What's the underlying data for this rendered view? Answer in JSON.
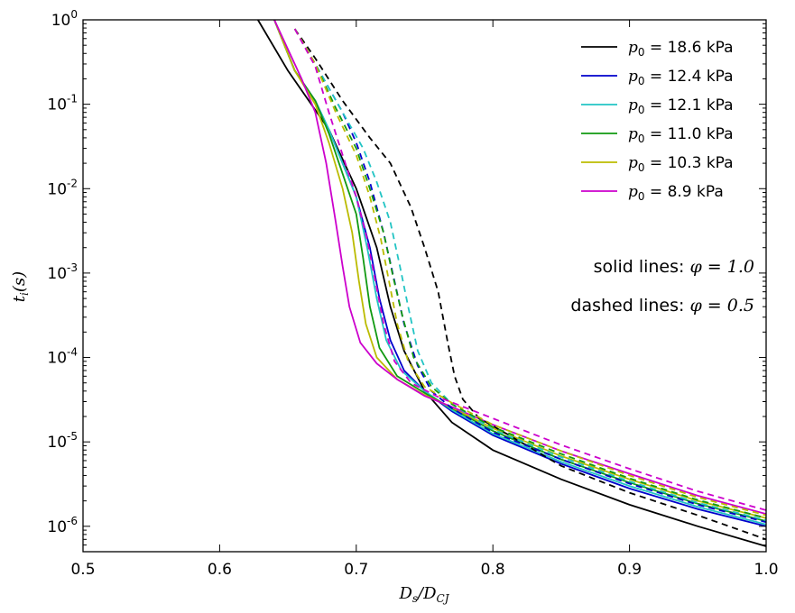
{
  "chart_data": {
    "type": "line",
    "title": "",
    "xlabel": "D_s/D_CJ",
    "ylabel": "t_i(s)",
    "yscale": "log",
    "xlim": [
      0.5,
      1.0
    ],
    "ylim": [
      5e-07,
      1.0
    ],
    "x_ticks": [
      "0.5",
      "0.6",
      "0.7",
      "0.8",
      "0.9",
      "1.0"
    ],
    "y_ticks": [
      {
        "base": "10",
        "exp": "0",
        "label": "10^0"
      },
      {
        "base": "10",
        "exp": "-1",
        "label": "10^-1"
      },
      {
        "base": "10",
        "exp": "-2",
        "label": "10^-2"
      },
      {
        "base": "10",
        "exp": "-3",
        "label": "10^-3"
      },
      {
        "base": "10",
        "exp": "-4",
        "label": "10^-4"
      },
      {
        "base": "10",
        "exp": "-5",
        "label": "10^-5"
      },
      {
        "base": "10",
        "exp": "-6",
        "label": "10^-6"
      }
    ],
    "legend": {
      "placement": "top-right",
      "entries": [
        {
          "var": "p",
          "sub": "0",
          "text": " = 18.6 kPa",
          "color": "#000000"
        },
        {
          "var": "p",
          "sub": "0",
          "text": " = 12.4 kPa",
          "color": "#0000cc"
        },
        {
          "var": "p",
          "sub": "0",
          "text": " = 12.1 kPa",
          "color": "#22c4c4"
        },
        {
          "var": "p",
          "sub": "0",
          "text": " = 11.0 kPa",
          "color": "#119911"
        },
        {
          "var": "p",
          "sub": "0",
          "text": " = 10.3 kPa",
          "color": "#bbbb00"
        },
        {
          "var": "p",
          "sub": "0",
          "text": " = 8.9 kPa",
          "color": "#cc00cc"
        }
      ]
    },
    "annotations": [
      {
        "text": "solid lines: ",
        "math": "φ = 1.0"
      },
      {
        "text": "dashed lines: ",
        "math": "φ = 0.5"
      }
    ],
    "series": [
      {
        "name": "p0 = 18.6 kPa, phi = 1.0",
        "color": "#000000",
        "style": "solid",
        "points": [
          [
            0.628,
            1.0
          ],
          [
            0.65,
            0.25
          ],
          [
            0.68,
            0.05
          ],
          [
            0.7,
            0.01
          ],
          [
            0.715,
            0.002
          ],
          [
            0.725,
            0.0004
          ],
          [
            0.735,
            0.00012
          ],
          [
            0.75,
            4e-05
          ],
          [
            0.77,
            1.7e-05
          ],
          [
            0.8,
            8e-06
          ],
          [
            0.85,
            3.6e-06
          ],
          [
            0.9,
            1.8e-06
          ],
          [
            0.95,
            1e-06
          ],
          [
            1.0,
            5.8e-07
          ]
        ]
      },
      {
        "name": "p0 = 12.4 kPa, phi = 1.0",
        "color": "#0000cc",
        "style": "solid",
        "points": [
          [
            0.64,
            1.0
          ],
          [
            0.655,
            0.25
          ],
          [
            0.67,
            0.11
          ],
          [
            0.68,
            0.05
          ],
          [
            0.69,
            0.02
          ],
          [
            0.7,
            0.008
          ],
          [
            0.71,
            0.002
          ],
          [
            0.717,
            0.0005
          ],
          [
            0.725,
            0.00016
          ],
          [
            0.735,
            7e-05
          ],
          [
            0.75,
            4e-05
          ],
          [
            0.77,
            2.3e-05
          ],
          [
            0.8,
            1.2e-05
          ],
          [
            0.85,
            5.5e-06
          ],
          [
            0.9,
            2.8e-06
          ],
          [
            0.95,
            1.6e-06
          ],
          [
            1.0,
            1e-06
          ]
        ]
      },
      {
        "name": "p0 = 12.1 kPa, phi = 1.0",
        "color": "#22c4c4",
        "style": "solid",
        "points": [
          [
            0.64,
            1.0
          ],
          [
            0.655,
            0.25
          ],
          [
            0.67,
            0.11
          ],
          [
            0.68,
            0.05
          ],
          [
            0.69,
            0.02
          ],
          [
            0.7,
            0.008
          ],
          [
            0.708,
            0.002
          ],
          [
            0.715,
            0.0005
          ],
          [
            0.722,
            0.00016
          ],
          [
            0.733,
            7e-05
          ],
          [
            0.75,
            4e-05
          ],
          [
            0.77,
            2.4e-05
          ],
          [
            0.8,
            1.25e-05
          ],
          [
            0.85,
            5.8e-06
          ],
          [
            0.9,
            3e-06
          ],
          [
            0.95,
            1.7e-06
          ],
          [
            1.0,
            1.05e-06
          ]
        ]
      },
      {
        "name": "p0 = 11.0 kPa, phi = 1.0",
        "color": "#119911",
        "style": "solid",
        "points": [
          [
            0.64,
            1.0
          ],
          [
            0.655,
            0.25
          ],
          [
            0.67,
            0.11
          ],
          [
            0.68,
            0.045
          ],
          [
            0.69,
            0.015
          ],
          [
            0.7,
            0.005
          ],
          [
            0.705,
            0.0015
          ],
          [
            0.71,
            0.0004
          ],
          [
            0.717,
            0.00013
          ],
          [
            0.73,
            6e-05
          ],
          [
            0.75,
            3.8e-05
          ],
          [
            0.77,
            2.5e-05
          ],
          [
            0.8,
            1.35e-05
          ],
          [
            0.85,
            6.2e-06
          ],
          [
            0.9,
            3.3e-06
          ],
          [
            0.95,
            1.85e-06
          ],
          [
            1.0,
            1.15e-06
          ]
        ]
      },
      {
        "name": "p0 = 10.3 kPa, phi = 1.0",
        "color": "#bbbb00",
        "style": "solid",
        "points": [
          [
            0.64,
            1.0
          ],
          [
            0.655,
            0.25
          ],
          [
            0.67,
            0.1
          ],
          [
            0.68,
            0.035
          ],
          [
            0.69,
            0.01
          ],
          [
            0.697,
            0.003
          ],
          [
            0.702,
            0.0008
          ],
          [
            0.707,
            0.00025
          ],
          [
            0.715,
            0.0001
          ],
          [
            0.73,
            5.5e-05
          ],
          [
            0.75,
            3.6e-05
          ],
          [
            0.77,
            2.55e-05
          ],
          [
            0.8,
            1.45e-05
          ],
          [
            0.85,
            6.8e-06
          ],
          [
            0.9,
            3.6e-06
          ],
          [
            0.95,
            2e-06
          ],
          [
            1.0,
            1.25e-06
          ]
        ]
      },
      {
        "name": "p0 = 8.9 kPa, phi = 1.0",
        "color": "#cc00cc",
        "style": "solid",
        "points": [
          [
            0.64,
            1.0
          ],
          [
            0.66,
            0.2
          ],
          [
            0.67,
            0.08
          ],
          [
            0.678,
            0.02
          ],
          [
            0.685,
            0.004
          ],
          [
            0.69,
            0.0012
          ],
          [
            0.695,
            0.0004
          ],
          [
            0.703,
            0.00015
          ],
          [
            0.715,
            8.5e-05
          ],
          [
            0.73,
            5.5e-05
          ],
          [
            0.75,
            3.5e-05
          ],
          [
            0.77,
            2.6e-05
          ],
          [
            0.8,
            1.6e-05
          ],
          [
            0.85,
            7.8e-06
          ],
          [
            0.9,
            4.2e-06
          ],
          [
            0.95,
            2.3e-06
          ],
          [
            1.0,
            1.4e-06
          ]
        ]
      },
      {
        "name": "p0 = 18.6 kPa, phi = 0.5",
        "color": "#000000",
        "style": "dashed",
        "points": [
          [
            0.655,
            0.78
          ],
          [
            0.67,
            0.35
          ],
          [
            0.69,
            0.11
          ],
          [
            0.71,
            0.04
          ],
          [
            0.725,
            0.02
          ],
          [
            0.74,
            0.006
          ],
          [
            0.75,
            0.002
          ],
          [
            0.76,
            0.0006
          ],
          [
            0.767,
            0.00015
          ],
          [
            0.772,
            6e-05
          ],
          [
            0.778,
            3.2e-05
          ],
          [
            0.79,
            1.9e-05
          ],
          [
            0.81,
            1.25e-05
          ],
          [
            0.85,
            5.2e-06
          ],
          [
            0.9,
            2.5e-06
          ],
          [
            0.95,
            1.35e-06
          ],
          [
            1.0,
            7e-07
          ]
        ]
      },
      {
        "name": "p0 = 12.4 kPa, phi = 0.5",
        "color": "#0000cc",
        "style": "dashed",
        "points": [
          [
            0.655,
            0.78
          ],
          [
            0.67,
            0.3
          ],
          [
            0.69,
            0.08
          ],
          [
            0.7,
            0.035
          ],
          [
            0.71,
            0.012
          ],
          [
            0.72,
            0.003
          ],
          [
            0.728,
            0.0008
          ],
          [
            0.735,
            0.00025
          ],
          [
            0.745,
            8e-05
          ],
          [
            0.755,
            4e-05
          ],
          [
            0.77,
            2.5e-05
          ],
          [
            0.8,
            1.3e-05
          ],
          [
            0.85,
            6.2e-06
          ],
          [
            0.9,
            3.2e-06
          ],
          [
            0.95,
            1.8e-06
          ],
          [
            1.0,
            1.12e-06
          ]
        ]
      },
      {
        "name": "p0 = 12.1 kPa, phi = 0.5",
        "color": "#22c4c4",
        "style": "dashed",
        "points": [
          [
            0.655,
            0.78
          ],
          [
            0.67,
            0.3
          ],
          [
            0.69,
            0.08
          ],
          [
            0.705,
            0.03
          ],
          [
            0.715,
            0.012
          ],
          [
            0.725,
            0.004
          ],
          [
            0.732,
            0.0012
          ],
          [
            0.738,
            0.0004
          ],
          [
            0.745,
            0.00012
          ],
          [
            0.755,
            5e-05
          ],
          [
            0.77,
            2.8e-05
          ],
          [
            0.8,
            1.4e-05
          ],
          [
            0.85,
            6.6e-06
          ],
          [
            0.9,
            3.4e-06
          ],
          [
            0.95,
            1.9e-06
          ],
          [
            1.0,
            1.18e-06
          ]
        ]
      },
      {
        "name": "p0 = 11.0 kPa, phi = 0.5",
        "color": "#119911",
        "style": "dashed",
        "points": [
          [
            0.655,
            0.78
          ],
          [
            0.67,
            0.3
          ],
          [
            0.685,
            0.09
          ],
          [
            0.7,
            0.03
          ],
          [
            0.71,
            0.01
          ],
          [
            0.72,
            0.003
          ],
          [
            0.727,
            0.0009
          ],
          [
            0.734,
            0.0003
          ],
          [
            0.742,
            0.0001
          ],
          [
            0.755,
            4.5e-05
          ],
          [
            0.77,
            2.8e-05
          ],
          [
            0.8,
            1.5e-05
          ],
          [
            0.85,
            7.2e-06
          ],
          [
            0.9,
            3.7e-06
          ],
          [
            0.95,
            2.05e-06
          ],
          [
            1.0,
            1.25e-06
          ]
        ]
      },
      {
        "name": "p0 = 10.3 kPa, phi = 0.5",
        "color": "#bbbb00",
        "style": "dashed",
        "points": [
          [
            0.655,
            0.78
          ],
          [
            0.67,
            0.3
          ],
          [
            0.685,
            0.08
          ],
          [
            0.7,
            0.025
          ],
          [
            0.71,
            0.008
          ],
          [
            0.718,
            0.0025
          ],
          [
            0.724,
            0.0008
          ],
          [
            0.73,
            0.00025
          ],
          [
            0.738,
            9e-05
          ],
          [
            0.75,
            4.5e-05
          ],
          [
            0.77,
            2.9e-05
          ],
          [
            0.8,
            1.6e-05
          ],
          [
            0.85,
            7.8e-06
          ],
          [
            0.9,
            4e-06
          ],
          [
            0.95,
            2.2e-06
          ],
          [
            1.0,
            1.35e-06
          ]
        ]
      },
      {
        "name": "p0 = 8.9 kPa, phi = 0.5",
        "color": "#cc00cc",
        "style": "dashed",
        "points": [
          [
            0.655,
            0.78
          ],
          [
            0.67,
            0.28
          ],
          [
            0.68,
            0.08
          ],
          [
            0.69,
            0.025
          ],
          [
            0.7,
            0.008
          ],
          [
            0.708,
            0.0025
          ],
          [
            0.714,
            0.0008
          ],
          [
            0.72,
            0.00025
          ],
          [
            0.728,
            9e-05
          ],
          [
            0.74,
            5e-05
          ],
          [
            0.76,
            3.4e-05
          ],
          [
            0.8,
            1.9e-05
          ],
          [
            0.85,
            9.2e-06
          ],
          [
            0.9,
            4.8e-06
          ],
          [
            0.95,
            2.6e-06
          ],
          [
            1.0,
            1.55e-06
          ]
        ]
      }
    ]
  }
}
